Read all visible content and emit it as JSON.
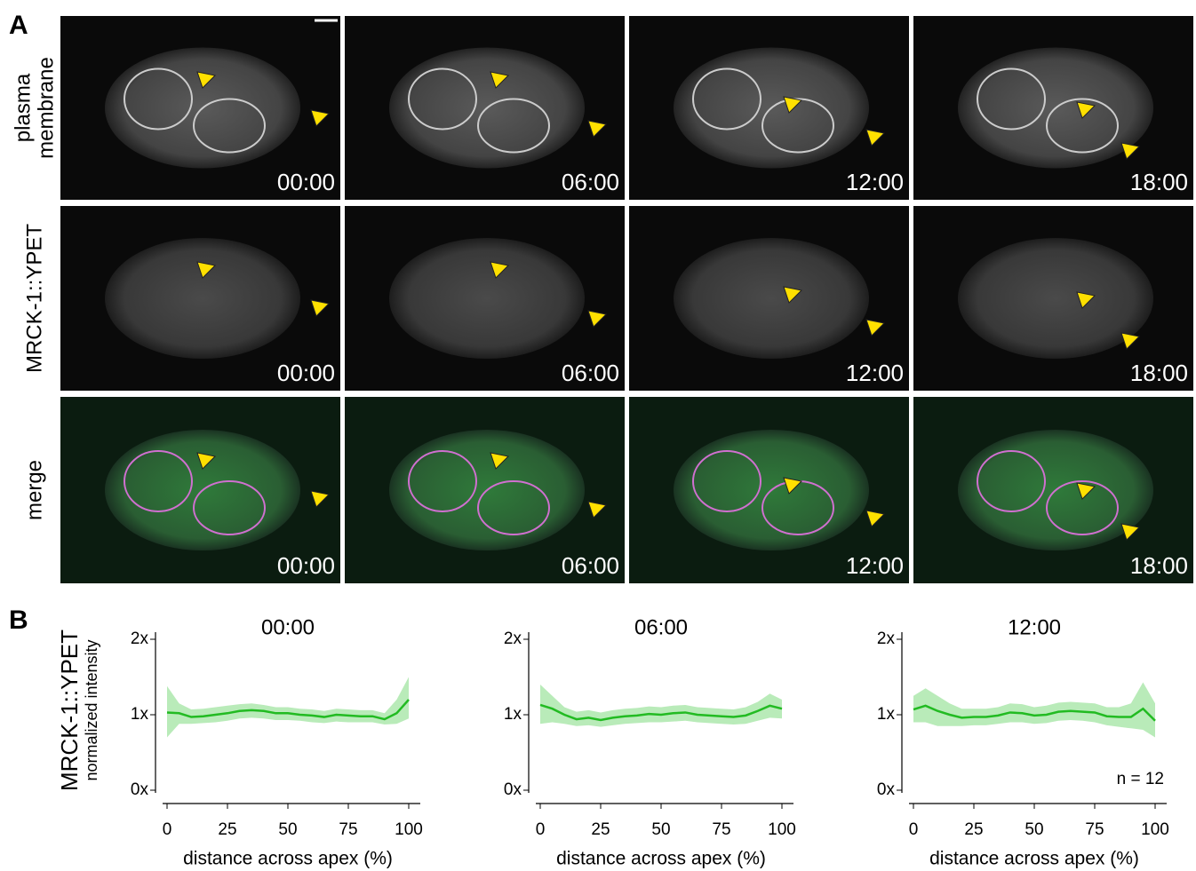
{
  "figure": {
    "panel_a": {
      "letter": "A",
      "row_labels": [
        [
          "plasma",
          "membrane"
        ],
        [
          "MRCK-1::YPET"
        ],
        [
          "merge"
        ]
      ],
      "timestamps": [
        "00:00",
        "06:00",
        "12:00",
        "18:00"
      ]
    },
    "panel_b": {
      "letter": "B",
      "ylabel": [
        "MRCK-1::YPET",
        "normalized intensity"
      ]
    }
  },
  "chart_data": [
    {
      "type": "line",
      "title": "00:00",
      "xlabel": "distance across apex (%)",
      "x": [
        0,
        5,
        10,
        15,
        20,
        25,
        30,
        35,
        40,
        45,
        50,
        55,
        60,
        65,
        70,
        75,
        80,
        85,
        90,
        95,
        100
      ],
      "series": [
        {
          "color": "#22bb22",
          "band_color": "#b9ebb9",
          "values": [
            1.03,
            1.02,
            0.97,
            0.98,
            1.0,
            1.02,
            1.05,
            1.06,
            1.05,
            1.02,
            1.02,
            1.0,
            0.99,
            0.97,
            1.0,
            0.99,
            0.98,
            0.98,
            0.94,
            1.02,
            1.2
          ],
          "upper": [
            1.38,
            1.15,
            1.07,
            1.08,
            1.1,
            1.12,
            1.14,
            1.15,
            1.13,
            1.1,
            1.1,
            1.08,
            1.07,
            1.05,
            1.08,
            1.07,
            1.06,
            1.06,
            1.02,
            1.2,
            1.5
          ],
          "lower": [
            0.7,
            0.88,
            0.88,
            0.89,
            0.9,
            0.92,
            0.95,
            0.96,
            0.95,
            0.93,
            0.93,
            0.92,
            0.9,
            0.89,
            0.91,
            0.9,
            0.9,
            0.9,
            0.87,
            0.88,
            0.95
          ]
        }
      ],
      "xlim": [
        0,
        100
      ],
      "xticks": [
        0,
        25,
        50,
        75,
        100
      ],
      "ylim": [
        0,
        2
      ],
      "yticks": [
        {
          "value": 0,
          "label": "0x"
        },
        {
          "value": 1,
          "label": "1x"
        },
        {
          "value": 2,
          "label": "2x"
        }
      ]
    },
    {
      "type": "line",
      "title": "06:00",
      "xlabel": "distance across apex (%)",
      "x": [
        0,
        5,
        10,
        15,
        20,
        25,
        30,
        35,
        40,
        45,
        50,
        55,
        60,
        65,
        70,
        75,
        80,
        85,
        90,
        95,
        100
      ],
      "series": [
        {
          "color": "#22bb22",
          "band_color": "#b9ebb9",
          "values": [
            1.13,
            1.08,
            1.0,
            0.94,
            0.96,
            0.93,
            0.96,
            0.98,
            0.99,
            1.01,
            1.0,
            1.02,
            1.03,
            1.0,
            0.99,
            0.98,
            0.97,
            0.99,
            1.05,
            1.12,
            1.08
          ],
          "upper": [
            1.4,
            1.25,
            1.1,
            1.04,
            1.06,
            1.03,
            1.06,
            1.08,
            1.09,
            1.11,
            1.1,
            1.12,
            1.13,
            1.1,
            1.09,
            1.08,
            1.07,
            1.1,
            1.17,
            1.28,
            1.2
          ],
          "lower": [
            0.88,
            0.9,
            0.88,
            0.85,
            0.86,
            0.84,
            0.86,
            0.88,
            0.89,
            0.9,
            0.9,
            0.91,
            0.92,
            0.9,
            0.89,
            0.88,
            0.87,
            0.88,
            0.92,
            0.96,
            0.95
          ]
        }
      ],
      "xlim": [
        0,
        100
      ],
      "xticks": [
        0,
        25,
        50,
        75,
        100
      ],
      "ylim": [
        0,
        2
      ],
      "yticks": [
        {
          "value": 0,
          "label": "0x"
        },
        {
          "value": 1,
          "label": "1x"
        },
        {
          "value": 2,
          "label": "2x"
        }
      ]
    },
    {
      "type": "line",
      "title": "12:00",
      "xlabel": "distance across apex (%)",
      "annotation": "n = 12",
      "x": [
        0,
        5,
        10,
        15,
        20,
        25,
        30,
        35,
        40,
        45,
        50,
        55,
        60,
        65,
        70,
        75,
        80,
        85,
        90,
        95,
        100
      ],
      "series": [
        {
          "color": "#22bb22",
          "band_color": "#b9ebb9",
          "values": [
            1.07,
            1.12,
            1.05,
            1.0,
            0.96,
            0.97,
            0.97,
            0.99,
            1.03,
            1.02,
            0.99,
            1.0,
            1.04,
            1.05,
            1.04,
            1.03,
            0.98,
            0.97,
            0.97,
            1.08,
            0.92
          ],
          "upper": [
            1.25,
            1.35,
            1.25,
            1.15,
            1.08,
            1.08,
            1.08,
            1.1,
            1.15,
            1.14,
            1.1,
            1.12,
            1.16,
            1.17,
            1.16,
            1.15,
            1.1,
            1.1,
            1.15,
            1.43,
            1.15
          ],
          "lower": [
            0.9,
            0.9,
            0.85,
            0.85,
            0.85,
            0.86,
            0.86,
            0.88,
            0.9,
            0.9,
            0.88,
            0.89,
            0.92,
            0.93,
            0.92,
            0.9,
            0.86,
            0.84,
            0.82,
            0.8,
            0.7
          ]
        }
      ],
      "xlim": [
        0,
        100
      ],
      "xticks": [
        0,
        25,
        50,
        75,
        100
      ],
      "ylim": [
        0,
        2
      ],
      "yticks": [
        {
          "value": 0,
          "label": "0x"
        },
        {
          "value": 1,
          "label": "1x"
        },
        {
          "value": 2,
          "label": "2x"
        }
      ]
    }
  ]
}
